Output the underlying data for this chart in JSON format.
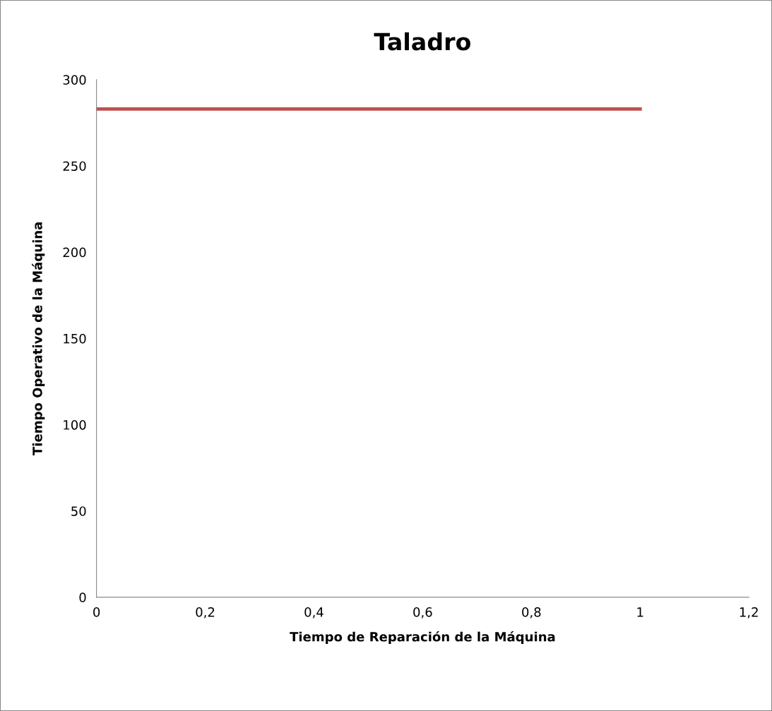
{
  "chart_data": {
    "type": "line",
    "title": "Taladro",
    "xlabel": "Tiempo de Reparación de la Máquina",
    "ylabel": "Tiempo Operativo de la Máquina",
    "x": [
      0,
      1
    ],
    "series": [
      {
        "color": "#c0504d",
        "values": [
          283,
          283
        ]
      }
    ],
    "xlim": [
      0,
      1.2
    ],
    "xticks": [
      0,
      {
        "value": 0.2,
        "label": "0,2"
      },
      {
        "value": 0.4,
        "label": "0,4"
      },
      {
        "value": 0.6,
        "label": "0,6"
      },
      {
        "value": 0.8,
        "label": "0,8"
      },
      1,
      {
        "value": 1.2,
        "label": "1,2"
      }
    ],
    "ylim": [
      0,
      300
    ],
    "yticks": [
      0,
      50,
      100,
      150,
      200,
      250,
      300
    ],
    "grid": false,
    "marker": "none",
    "line_style": "solid"
  }
}
